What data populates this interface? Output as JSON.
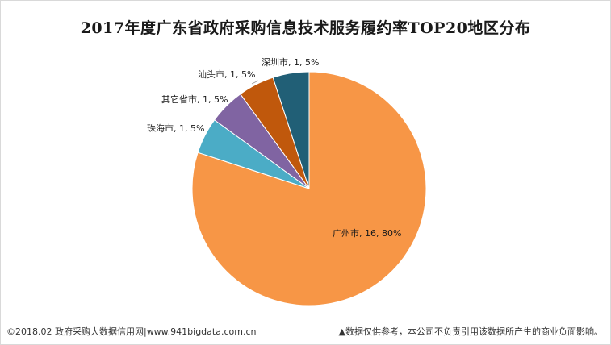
{
  "chart_data": {
    "type": "pie",
    "title": "2017年度广东省政府采购信息技术服务履约率TOP20地区分布",
    "slices": [
      {
        "name": "广州市",
        "value": 16,
        "percent": "80%",
        "color": "#F79646"
      },
      {
        "name": "珠海市",
        "value": 1,
        "percent": "5%",
        "color": "#4BACC6"
      },
      {
        "name": "其它省市",
        "value": 1,
        "percent": "5%",
        "color": "#8064A2"
      },
      {
        "name": "汕头市",
        "value": 1,
        "percent": "5%",
        "color": "#C0580C"
      },
      {
        "name": "深圳市",
        "value": 1,
        "percent": "5%",
        "color": "#215F76"
      }
    ],
    "labels": [
      "广州市, 16, 80%",
      "珠海市, 1, 5%",
      "其它省市, 1, 5%",
      "汕头市, 1, 5%",
      "深圳市, 1, 5%"
    ]
  },
  "footer": {
    "source": "©2018.02 政府采购大数据信用网|www.941bigdata.com.cn",
    "disclaimer": "▲数据仅供参考，本公司不负责引用该数据所产生的商业负面影响。"
  }
}
